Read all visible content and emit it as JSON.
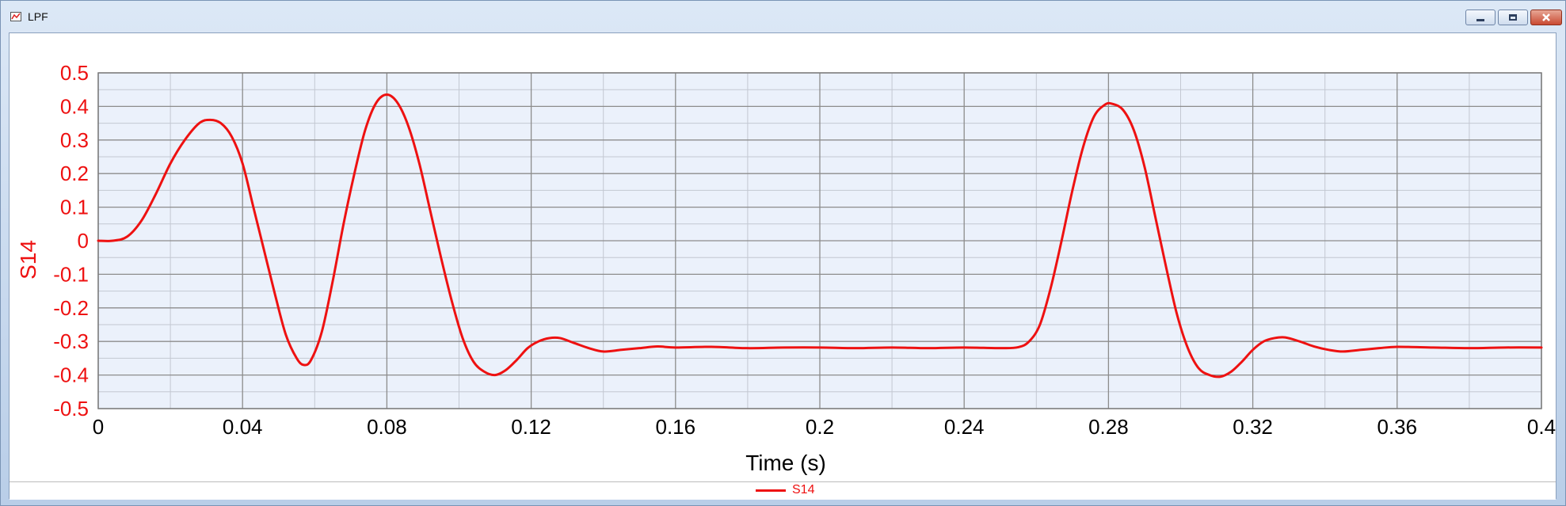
{
  "window": {
    "title": "LPF",
    "app_icon": "chart-icon",
    "controls": [
      "minimize-icon",
      "maximize-icon",
      "close-icon"
    ]
  },
  "colors": {
    "series": "#ee1111",
    "plot_background": "#ebf1fb",
    "major_grid": "#8c8c8c",
    "minor_grid": "#c3c8d2"
  },
  "chart_data": {
    "type": "line",
    "xlabel": "Time (s)",
    "ylabel": "S14",
    "xlim": [
      0,
      0.4
    ],
    "ylim": [
      -0.5,
      0.5
    ],
    "x_ticks": [
      "0",
      "0.04",
      "0.08",
      "0.12",
      "0.16",
      "0.2",
      "0.24",
      "0.28",
      "0.32",
      "0.36",
      "0.4"
    ],
    "y_ticks": [
      "0.5",
      "0.4",
      "0.3",
      "0.2",
      "0.1",
      "0",
      "-0.1",
      "-0.2",
      "-0.3",
      "-0.4",
      "-0.5"
    ],
    "grid": true,
    "legend": "bottom-center",
    "series": [
      {
        "name": "S14",
        "color": "#ee1111",
        "points": [
          [
            0.0,
            0.0
          ],
          [
            0.004,
            0.0
          ],
          [
            0.008,
            0.012
          ],
          [
            0.012,
            0.06
          ],
          [
            0.016,
            0.14
          ],
          [
            0.02,
            0.23
          ],
          [
            0.024,
            0.3
          ],
          [
            0.028,
            0.35
          ],
          [
            0.031,
            0.36
          ],
          [
            0.034,
            0.35
          ],
          [
            0.037,
            0.31
          ],
          [
            0.04,
            0.23
          ],
          [
            0.043,
            0.1
          ],
          [
            0.046,
            -0.03
          ],
          [
            0.049,
            -0.16
          ],
          [
            0.052,
            -0.28
          ],
          [
            0.055,
            -0.35
          ],
          [
            0.057,
            -0.37
          ],
          [
            0.059,
            -0.355
          ],
          [
            0.062,
            -0.27
          ],
          [
            0.065,
            -0.12
          ],
          [
            0.068,
            0.05
          ],
          [
            0.071,
            0.2
          ],
          [
            0.074,
            0.33
          ],
          [
            0.077,
            0.41
          ],
          [
            0.08,
            0.435
          ],
          [
            0.083,
            0.41
          ],
          [
            0.086,
            0.34
          ],
          [
            0.089,
            0.23
          ],
          [
            0.092,
            0.09
          ],
          [
            0.095,
            -0.05
          ],
          [
            0.098,
            -0.18
          ],
          [
            0.101,
            -0.29
          ],
          [
            0.104,
            -0.36
          ],
          [
            0.107,
            -0.39
          ],
          [
            0.11,
            -0.4
          ],
          [
            0.113,
            -0.385
          ],
          [
            0.116,
            -0.355
          ],
          [
            0.119,
            -0.32
          ],
          [
            0.122,
            -0.3
          ],
          [
            0.125,
            -0.29
          ],
          [
            0.128,
            -0.29
          ],
          [
            0.132,
            -0.305
          ],
          [
            0.136,
            -0.32
          ],
          [
            0.14,
            -0.33
          ],
          [
            0.145,
            -0.325
          ],
          [
            0.15,
            -0.32
          ],
          [
            0.155,
            -0.315
          ],
          [
            0.16,
            -0.318
          ],
          [
            0.17,
            -0.316
          ],
          [
            0.18,
            -0.32
          ],
          [
            0.19,
            -0.318
          ],
          [
            0.2,
            -0.318
          ],
          [
            0.21,
            -0.32
          ],
          [
            0.22,
            -0.318
          ],
          [
            0.23,
            -0.32
          ],
          [
            0.24,
            -0.318
          ],
          [
            0.25,
            -0.32
          ],
          [
            0.255,
            -0.317
          ],
          [
            0.258,
            -0.3
          ],
          [
            0.261,
            -0.25
          ],
          [
            0.264,
            -0.14
          ],
          [
            0.267,
            0.0
          ],
          [
            0.27,
            0.15
          ],
          [
            0.273,
            0.28
          ],
          [
            0.276,
            0.37
          ],
          [
            0.279,
            0.405
          ],
          [
            0.281,
            0.408
          ],
          [
            0.284,
            0.39
          ],
          [
            0.287,
            0.33
          ],
          [
            0.29,
            0.22
          ],
          [
            0.293,
            0.07
          ],
          [
            0.296,
            -0.08
          ],
          [
            0.299,
            -0.22
          ],
          [
            0.302,
            -0.32
          ],
          [
            0.305,
            -0.38
          ],
          [
            0.308,
            -0.4
          ],
          [
            0.311,
            -0.405
          ],
          [
            0.314,
            -0.39
          ],
          [
            0.317,
            -0.36
          ],
          [
            0.32,
            -0.325
          ],
          [
            0.323,
            -0.3
          ],
          [
            0.326,
            -0.29
          ],
          [
            0.329,
            -0.288
          ],
          [
            0.333,
            -0.3
          ],
          [
            0.337,
            -0.315
          ],
          [
            0.341,
            -0.325
          ],
          [
            0.345,
            -0.33
          ],
          [
            0.35,
            -0.325
          ],
          [
            0.355,
            -0.32
          ],
          [
            0.36,
            -0.316
          ],
          [
            0.37,
            -0.318
          ],
          [
            0.38,
            -0.32
          ],
          [
            0.39,
            -0.318
          ],
          [
            0.4,
            -0.318
          ]
        ]
      }
    ]
  }
}
